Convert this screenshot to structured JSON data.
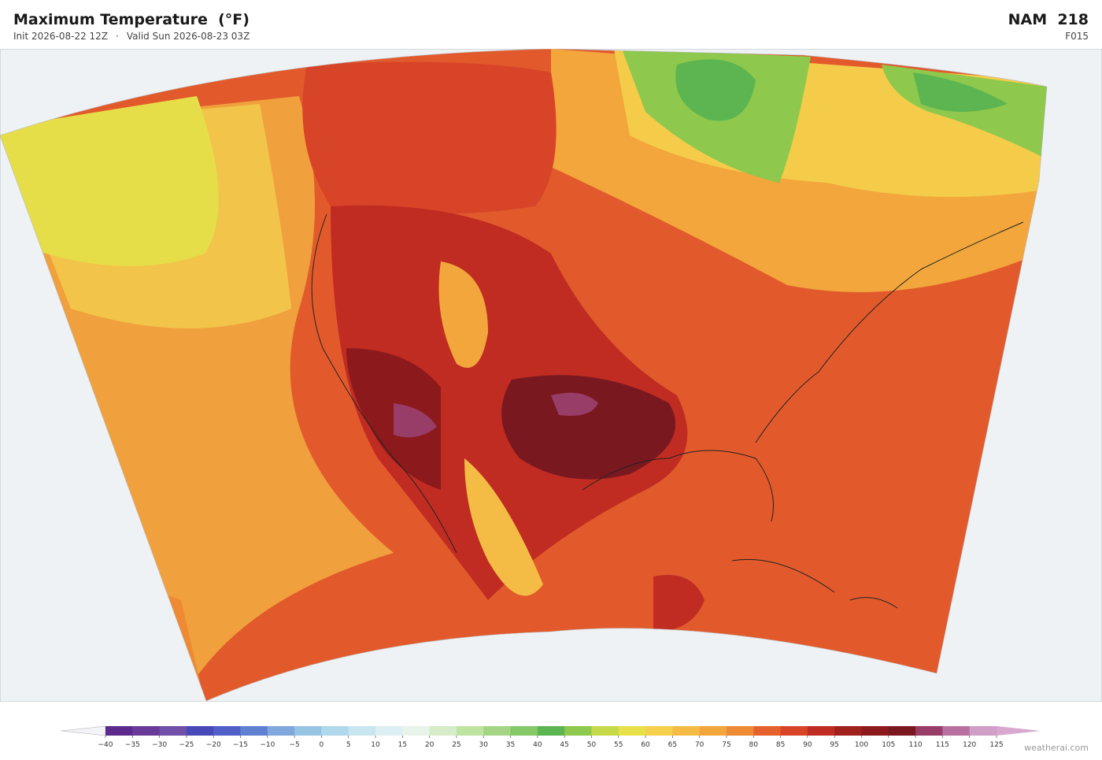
{
  "header": {
    "title": "Maximum Temperature  (°F)",
    "init": "Init 2026-08-22 12Z",
    "separator": "·",
    "valid": "Valid Sun 2026-08-23 03Z",
    "model": "NAM  218",
    "forecast_hour": "F015"
  },
  "colorbar": {
    "ticks": [
      {
        "value": -40,
        "label": "−40"
      },
      {
        "value": -35,
        "label": "−35"
      },
      {
        "value": -30,
        "label": "−30"
      },
      {
        "value": -25,
        "label": "−25"
      },
      {
        "value": -20,
        "label": "−20"
      },
      {
        "value": -15,
        "label": "−15"
      },
      {
        "value": -10,
        "label": "−10"
      },
      {
        "value": -5,
        "label": "−5"
      },
      0,
      5,
      10,
      15,
      20,
      25,
      30,
      35,
      40,
      45,
      50,
      55,
      60,
      65,
      70,
      75,
      80,
      85,
      90,
      95,
      100,
      105,
      110,
      115,
      120,
      125
    ],
    "colors": [
      "#5b2a8c",
      "#6a3a9a",
      "#7050a8",
      "#4848b8",
      "#5060c8",
      "#6080d0",
      "#80a8dc",
      "#98c4e4",
      "#b0d8ec",
      "#c8e6f0",
      "#dceff2",
      "#e8f4ea",
      "#d6ecc8",
      "#bfe3a0",
      "#a3d585",
      "#84c868",
      "#5cb550",
      "#8ec84c",
      "#c6d94a",
      "#e8e048",
      "#f4d04c",
      "#f4bc44",
      "#f2a63c",
      "#ee8a34",
      "#e6622c",
      "#d84428",
      "#c02c22",
      "#a0201c",
      "#8c1a1c",
      "#7a1820",
      "#983c68",
      "#b8709e",
      "#d09ec6"
    ],
    "under_color": "#f4f4f8",
    "over_color": "#d8a8d0"
  },
  "footer": {
    "credit": "weatherai.com"
  }
}
